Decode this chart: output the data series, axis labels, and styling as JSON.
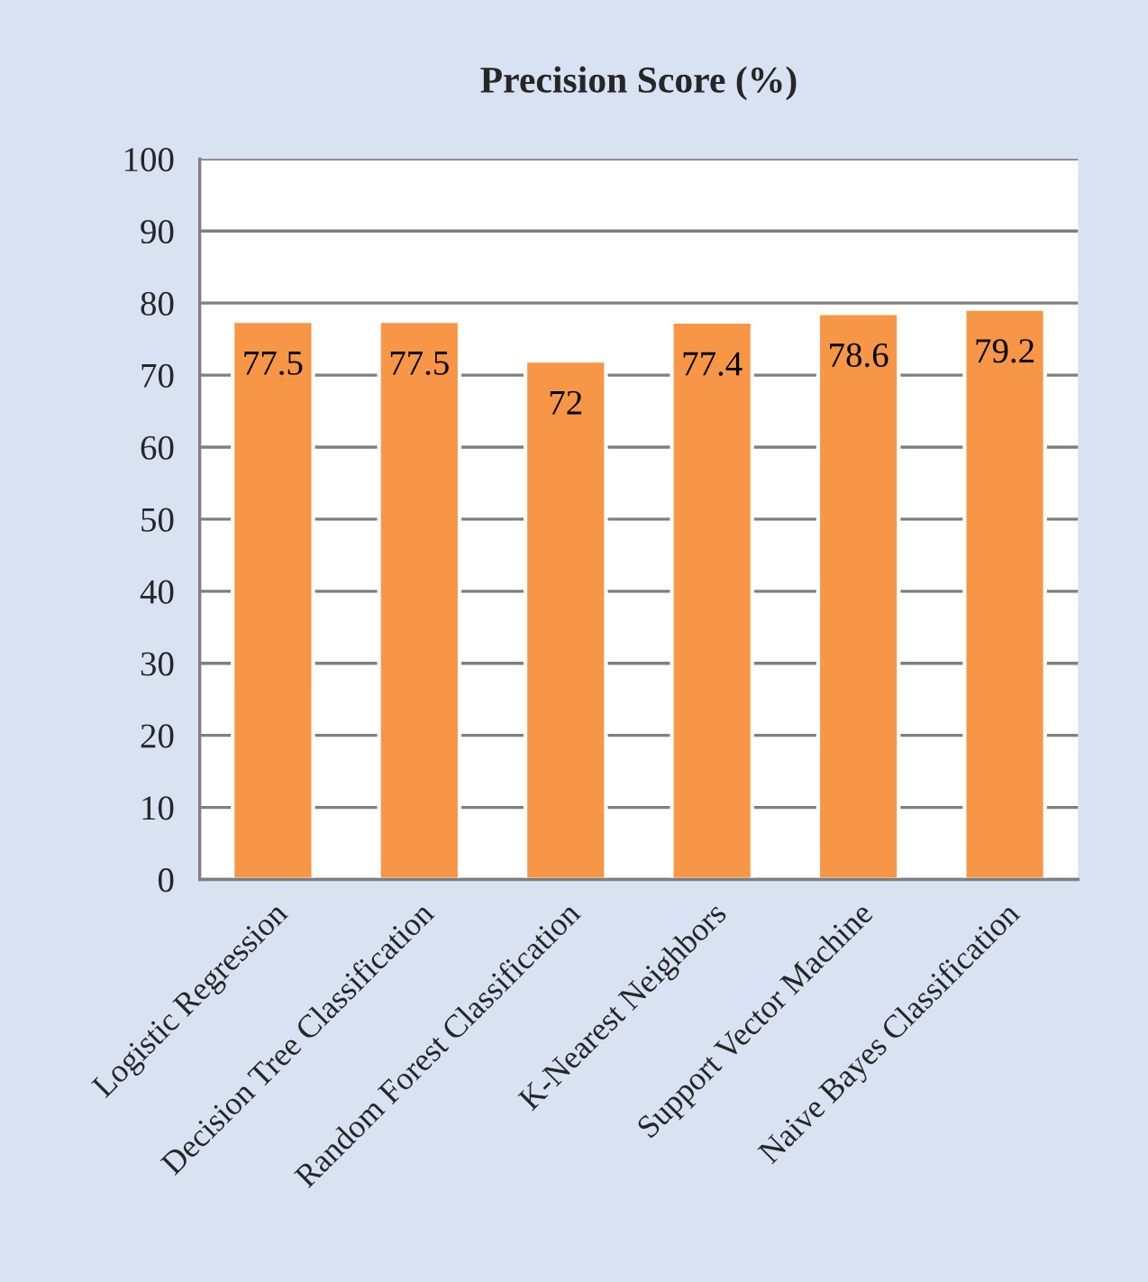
{
  "chart_data": {
    "type": "bar",
    "title": "Precision Score (%)",
    "categories": [
      "Logistic Regression",
      "Decision Tree Classification",
      "Random Forest Classification",
      "K-Nearest Neighbors",
      "Support Vector Machine",
      "Naive Bayes Classification"
    ],
    "values": [
      77.5,
      77.5,
      72,
      77.4,
      78.6,
      79.2
    ],
    "color": "#f79646",
    "ylim": [
      0,
      100
    ],
    "yticks": [
      0,
      10,
      20,
      30,
      40,
      50,
      60,
      70,
      80,
      90,
      100
    ],
    "grid": "y",
    "data_labels": true
  }
}
